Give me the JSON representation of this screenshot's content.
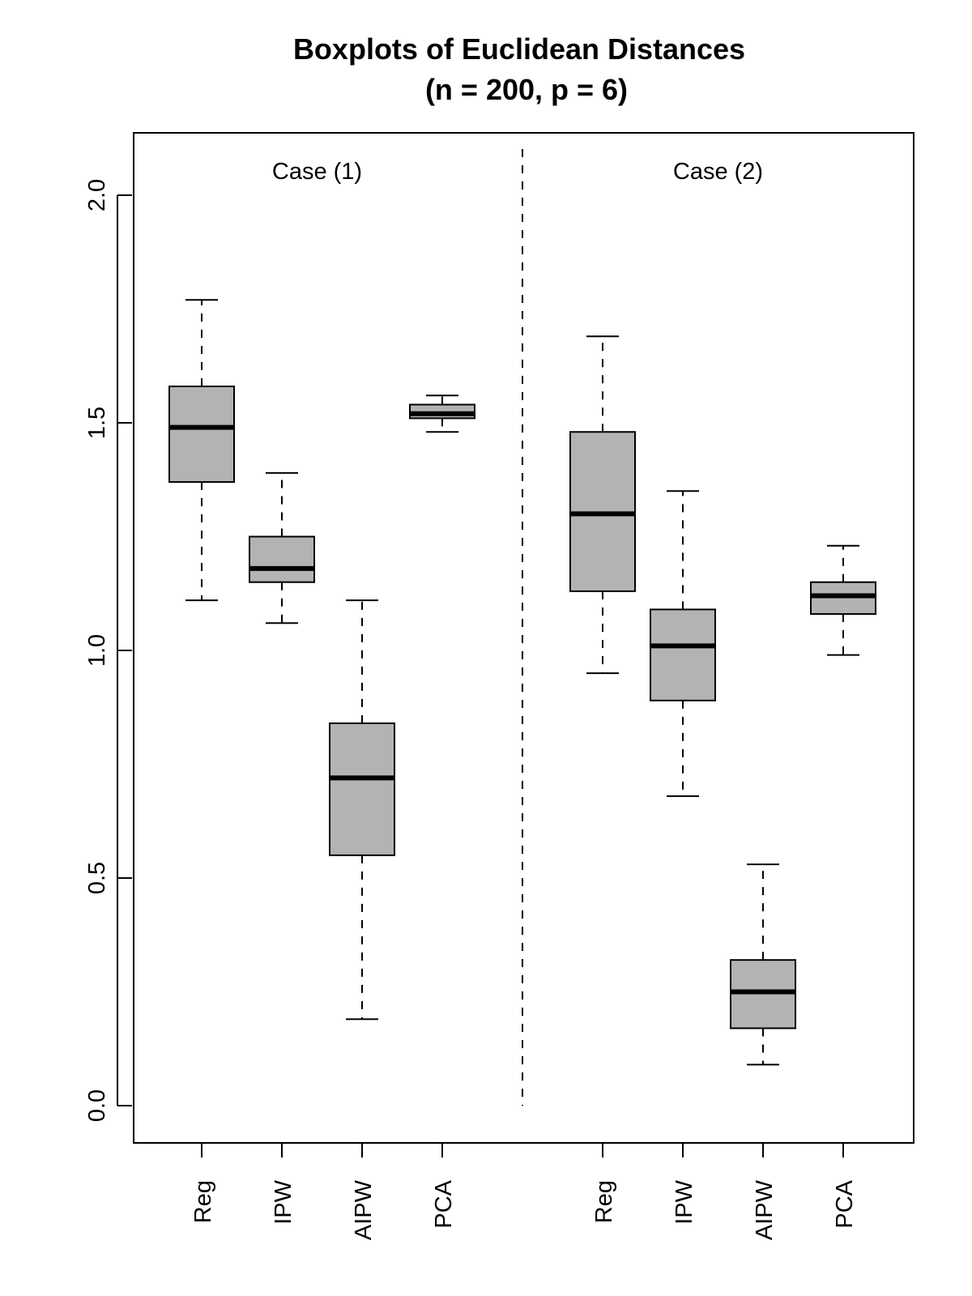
{
  "chart_data": {
    "type": "boxplot",
    "title": "Boxplots of Euclidean Distances",
    "subtitle": "(n = 200, p = 6)",
    "xlabel": "",
    "ylabel": "",
    "ylim": [
      -0.08,
      2.14
    ],
    "yticks": [
      0.0,
      0.5,
      1.0,
      1.5,
      2.0
    ],
    "ytick_labels": [
      "0.0",
      "0.5",
      "1.0",
      "1.5",
      "2.0"
    ],
    "grid": false,
    "box_fill": "#b3b3b3",
    "median_color": "#000000",
    "separator": "dashed vertical line between groups",
    "groups": [
      {
        "label": "Case (1)",
        "boxes": [
          {
            "name": "Reg",
            "whisker_low": 1.11,
            "q1": 1.37,
            "median": 1.49,
            "q3": 1.58,
            "whisker_high": 1.77
          },
          {
            "name": "IPW",
            "whisker_low": 1.06,
            "q1": 1.15,
            "median": 1.18,
            "q3": 1.25,
            "whisker_high": 1.39
          },
          {
            "name": "AIPW",
            "whisker_low": 0.19,
            "q1": 0.55,
            "median": 0.72,
            "q3": 0.84,
            "whisker_high": 1.11
          },
          {
            "name": "PCA",
            "whisker_low": 1.48,
            "q1": 1.51,
            "median": 1.52,
            "q3": 1.54,
            "whisker_high": 1.56
          }
        ]
      },
      {
        "label": "Case (2)",
        "boxes": [
          {
            "name": "Reg",
            "whisker_low": 0.95,
            "q1": 1.13,
            "median": 1.3,
            "q3": 1.48,
            "whisker_high": 1.69
          },
          {
            "name": "IPW",
            "whisker_low": 0.68,
            "q1": 0.89,
            "median": 1.01,
            "q3": 1.09,
            "whisker_high": 1.35
          },
          {
            "name": "AIPW",
            "whisker_low": 0.09,
            "q1": 0.17,
            "median": 0.25,
            "q3": 0.32,
            "whisker_high": 0.53
          },
          {
            "name": "PCA",
            "whisker_low": 0.99,
            "q1": 1.08,
            "median": 1.12,
            "q3": 1.15,
            "whisker_high": 1.23
          }
        ]
      }
    ]
  }
}
